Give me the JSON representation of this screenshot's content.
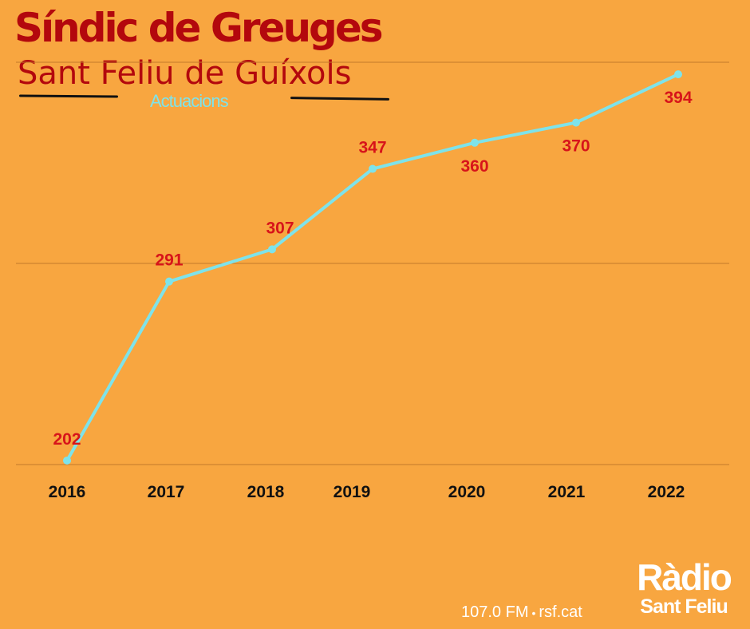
{
  "header": {
    "title": "Síndic de Greuges",
    "subtitle": "Sant Feliu de Guíxols"
  },
  "colors": {
    "background": "#F8A640",
    "title": "#B3080D",
    "line": "#7EE3EA",
    "data_label": "#D7141A",
    "axis_label": "#111111",
    "gridline": "#C27A2A"
  },
  "chart_data": {
    "type": "line",
    "title": "",
    "xlabel": "",
    "ylabel": "",
    "categories": [
      "2016",
      "2017",
      "2018",
      "2019",
      "2020",
      "2021",
      "2022"
    ],
    "series": [
      {
        "name": "Actuacions",
        "values": [
          202,
          291,
          307,
          347,
          360,
          370,
          394
        ]
      }
    ],
    "ylim": [
      200,
      400
    ],
    "grid": true,
    "data_labels": true
  },
  "footer": {
    "frequency": "107.0 FM",
    "separator": "•",
    "website": "rsf.cat"
  },
  "logo": {
    "line1": "Ràdio",
    "line2": "Sant Feliu"
  }
}
